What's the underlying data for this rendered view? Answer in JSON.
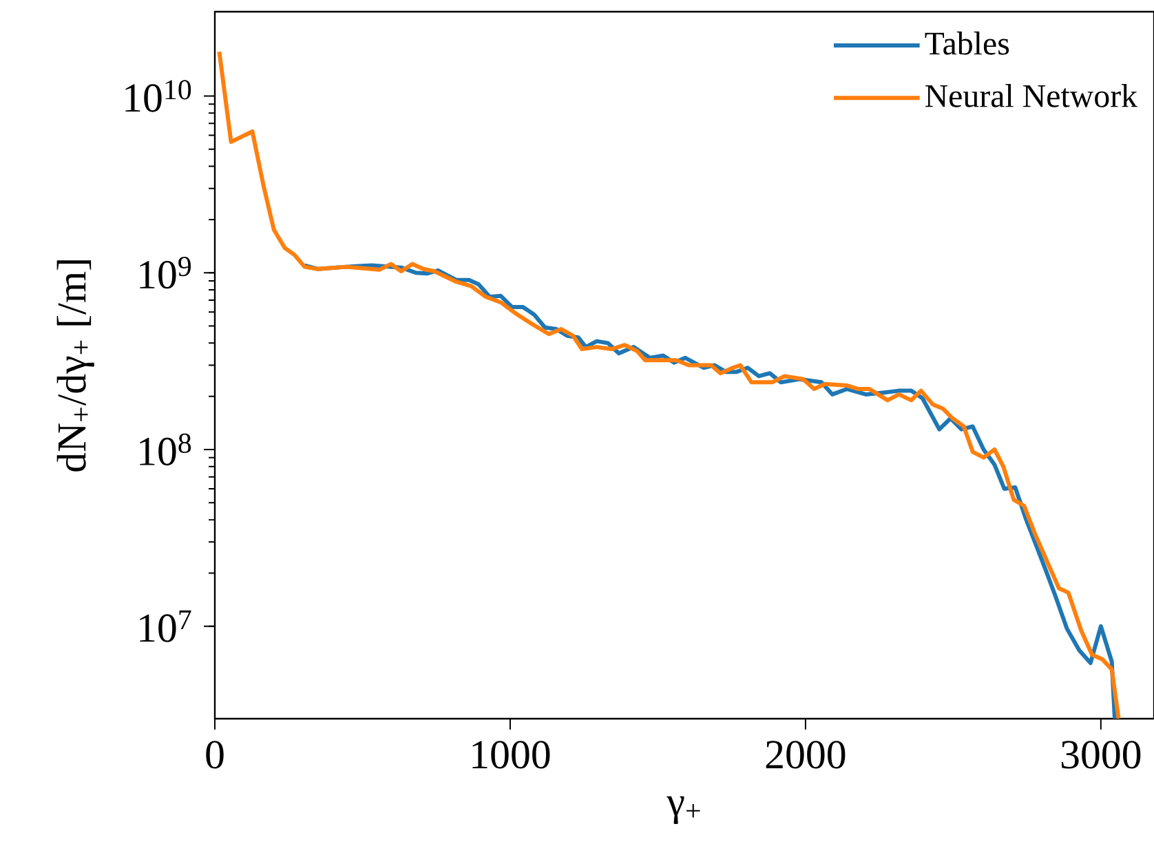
{
  "chart_data": {
    "type": "line",
    "xlabel": "γ$_{+}$",
    "ylabel": "dN$_{+}$/dγ$_{+}$ [/m]",
    "log": "y",
    "legend": "top right",
    "xlim": [
      0,
      3180
    ],
    "ylim": [
      3000000,
      30000000000
    ],
    "xticks": [
      0,
      1000,
      2000,
      3000
    ],
    "yticks": [
      {
        "value": 10000000,
        "label": "10$^{7}$"
      },
      {
        "value": 100000000,
        "label": "10$^{8}$"
      },
      {
        "value": 1000000000,
        "label": "10$^{9}$"
      },
      {
        "value": 10000000000,
        "label": "10$^{10}$"
      }
    ],
    "series": [
      {
        "name": "Tables",
        "color": "#1f77b4",
        "x": [
          304,
          349,
          444,
          532,
          631,
          681,
          718,
          756,
          817,
          861,
          893,
          931,
          968,
          1006,
          1043,
          1081,
          1118,
          1156,
          1193,
          1231,
          1256,
          1293,
          1331,
          1368,
          1418,
          1473,
          1518,
          1555,
          1593,
          1655,
          1692,
          1730,
          1767,
          1804,
          1842,
          1879,
          1917,
          1979,
          2054,
          2091,
          2141,
          2204,
          2266,
          2316,
          2358,
          2396,
          2453,
          2491,
          2528,
          2566,
          2603,
          2640,
          2673,
          2710,
          2745,
          2810,
          2845,
          2885,
          2927,
          2965,
          3000,
          3037,
          3047
        ],
        "values": [
          1100000000,
          1050000000,
          1080000000,
          1100000000,
          1070000000,
          1000000000,
          990000000,
          1030000000,
          910000000,
          910000000,
          860000000,
          730000000,
          740000000,
          640000000,
          640000000,
          580000000,
          490000000,
          480000000,
          440000000,
          430000000,
          380000000,
          410000000,
          400000000,
          350000000,
          380000000,
          330000000,
          340000000,
          310000000,
          330000000,
          290000000,
          300000000,
          275000000,
          275000000,
          290000000,
          260000000,
          270000000,
          240000000,
          250000000,
          240000000,
          205000000,
          220000000,
          205000000,
          210000000,
          215000000,
          215000000,
          195000000,
          130000000,
          150000000,
          130000000,
          135000000,
          100000000,
          82000000,
          60000000,
          61000000,
          41000000,
          21500000,
          15000000,
          9700000,
          7300000,
          6200000,
          10000000,
          6300000,
          3000000
        ]
      },
      {
        "name": "Neural Network",
        "color": "#ff7f0e",
        "x": [
          15,
          55,
          127,
          165,
          200,
          237,
          270,
          304,
          349,
          444,
          557,
          596,
          631,
          669,
          706,
          743,
          817,
          868,
          918,
          968,
          1018,
          1068,
          1131,
          1173,
          1213,
          1243,
          1293,
          1343,
          1388,
          1430,
          1457,
          1562,
          1605,
          1680,
          1712,
          1754,
          1779,
          1817,
          1887,
          1929,
          1992,
          2029,
          2066,
          2141,
          2179,
          2216,
          2278,
          2316,
          2358,
          2391,
          2431,
          2466,
          2498,
          2536,
          2566,
          2603,
          2640,
          2670,
          2705,
          2740,
          2778,
          2858,
          2890,
          2933,
          2970,
          3005,
          3037,
          3060
        ],
        "values": [
          17800000000,
          5500000000,
          6300000000,
          3100000000,
          1750000000,
          1380000000,
          1260000000,
          1080000000,
          1050000000,
          1080000000,
          1040000000,
          1120000000,
          1020000000,
          1120000000,
          1050000000,
          1020000000,
          890000000,
          840000000,
          730000000,
          680000000,
          590000000,
          520000000,
          450000000,
          480000000,
          440000000,
          370000000,
          380000000,
          370000000,
          390000000,
          360000000,
          320000000,
          320000000,
          300000000,
          300000000,
          270000000,
          290000000,
          300000000,
          240000000,
          240000000,
          260000000,
          250000000,
          220000000,
          235000000,
          230000000,
          220000000,
          220000000,
          190000000,
          205000000,
          190000000,
          215000000,
          180000000,
          170000000,
          150000000,
          135000000,
          97000000,
          90000000,
          100000000,
          80000000,
          52000000,
          48000000,
          33000000,
          16400000,
          15500000,
          9500000,
          6900000,
          6500000,
          5700000,
          3000000
        ]
      }
    ]
  }
}
